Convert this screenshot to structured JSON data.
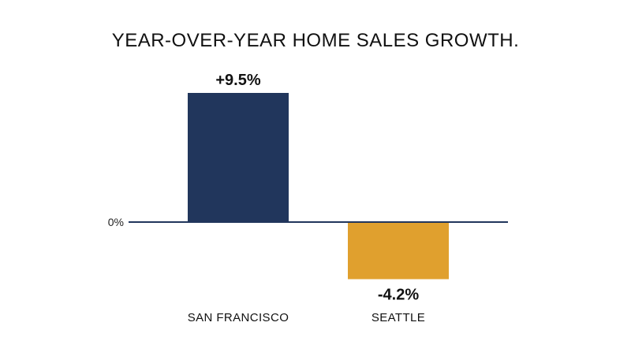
{
  "chart_data": {
    "type": "bar",
    "title": "YEAR-OVER-YEAR HOME SALES GROWTH.",
    "categories": [
      "SAN FRANCISCO",
      "SEATTLE"
    ],
    "values": [
      9.5,
      -4.2
    ],
    "data_labels": [
      "+9.5%",
      "-4.2%"
    ],
    "colors": [
      "#21365c",
      "#e0a02e"
    ],
    "zero_line_color": "#21365c",
    "baseline_label": "0%",
    "xlabel": "",
    "ylabel": "",
    "ylim": [
      -4.2,
      9.5
    ],
    "grid": false,
    "legend": "none"
  }
}
